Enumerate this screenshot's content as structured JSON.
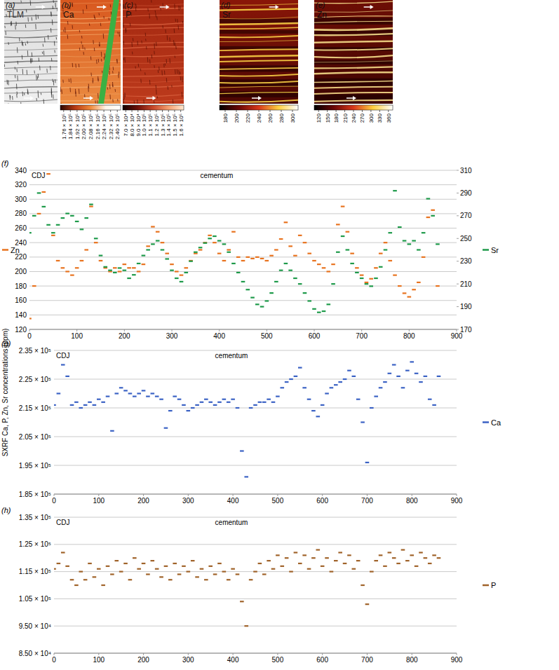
{
  "panels": [
    {
      "label": "(a)",
      "element": "TLM"
    },
    {
      "label": "(b)",
      "element": "Ca",
      "colorbar": {
        "range": [
          172000,
          244000
        ],
        "ticks": [
          {
            "value": 176000,
            "label": "1.76 × 10⁵"
          },
          {
            "value": 184000,
            "label": "1.84 × 10⁵"
          },
          {
            "value": 192000,
            "label": "1.92 × 10⁵"
          },
          {
            "value": 200000,
            "label": "2.00 × 10⁵"
          },
          {
            "value": 208000,
            "label": "2.08 × 10⁵"
          },
          {
            "value": 216000,
            "label": "2.16 × 10⁵"
          },
          {
            "value": 224000,
            "label": "2.24 × 10⁵"
          },
          {
            "value": 232000,
            "label": "2.32 × 10⁵"
          },
          {
            "value": 240000,
            "label": "2.40 × 10⁵"
          }
        ]
      }
    },
    {
      "label": "(c)",
      "element": "P",
      "colorbar": {
        "range": [
          65000,
          165000
        ],
        "ticks": [
          {
            "value": 70000,
            "label": "7.0 × 10⁴"
          },
          {
            "value": 80000,
            "label": "8.0 × 10⁴"
          },
          {
            "value": 90000,
            "label": "9.0 × 10⁴"
          },
          {
            "value": 100000,
            "label": "1.0 × 10⁵"
          },
          {
            "value": 110000,
            "label": "1.1 × 10⁵"
          },
          {
            "value": 120000,
            "label": "1.2 × 10⁵"
          },
          {
            "value": 130000,
            "label": "1.3 × 10⁵"
          },
          {
            "value": 140000,
            "label": "1.4 × 10⁵"
          },
          {
            "value": 150000,
            "label": "1.5 × 10⁵"
          },
          {
            "value": 160000,
            "label": "1.6 × 10⁵"
          }
        ]
      }
    },
    {
      "label": "(d)",
      "element": "Sr",
      "colorbar": {
        "range": [
          170,
          310
        ],
        "ticks": [
          180,
          200,
          220,
          240,
          260,
          280,
          300
        ]
      }
    },
    {
      "label": "(e)",
      "element": "Zn",
      "colorbar": {
        "range": [
          105,
          375
        ],
        "ticks": [
          120,
          150,
          180,
          210,
          240,
          270,
          300,
          330,
          360
        ]
      }
    }
  ],
  "y_axis_label": "SXRF Ca, P, Zn, Sr concentrations (ppm)",
  "chart_data": [
    {
      "type": "scatter",
      "title": "(f)",
      "annotations": [
        "CDJ",
        "cementum"
      ],
      "marker": "dash",
      "grid": true,
      "legend": "outside",
      "x": [
        0,
        10,
        20,
        30,
        40,
        50,
        60,
        70,
        80,
        90,
        100,
        110,
        120,
        130,
        140,
        150,
        160,
        170,
        180,
        190,
        200,
        210,
        220,
        230,
        240,
        250,
        260,
        270,
        280,
        290,
        300,
        310,
        320,
        330,
        340,
        350,
        360,
        370,
        380,
        390,
        400,
        410,
        420,
        430,
        440,
        450,
        460,
        470,
        480,
        490,
        500,
        510,
        520,
        530,
        540,
        550,
        560,
        570,
        580,
        590,
        600,
        610,
        620,
        630,
        640,
        650,
        660,
        670,
        680,
        690,
        700,
        710,
        720,
        730,
        740,
        750,
        760,
        770,
        780,
        790,
        800,
        810,
        820,
        830,
        840,
        850,
        860
      ],
      "xlim": [
        0,
        900
      ],
      "xticks": [
        0,
        100,
        200,
        300,
        400,
        500,
        600,
        700,
        800,
        900
      ],
      "ylim": [
        120,
        340
      ],
      "yticks": [
        120,
        140,
        160,
        180,
        200,
        220,
        240,
        260,
        280,
        300,
        320,
        340
      ],
      "y2lim": [
        170,
        310
      ],
      "y2ticks": [
        170,
        190,
        210,
        230,
        250,
        270,
        290,
        310
      ],
      "series": [
        {
          "name": "Zn",
          "color": "#e8731f",
          "values": [
            135,
            180,
            280,
            310,
            335,
            250,
            215,
            205,
            200,
            195,
            205,
            215,
            230,
            290,
            240,
            215,
            205,
            200,
            205,
            200,
            210,
            205,
            205,
            200,
            210,
            235,
            262,
            255,
            240,
            225,
            210,
            200,
            195,
            205,
            215,
            225,
            230,
            240,
            250,
            240,
            225,
            215,
            230,
            255,
            220,
            215,
            220,
            218,
            220,
            218,
            215,
            222,
            230,
            245,
            268,
            235,
            222,
            250,
            240,
            225,
            215,
            210,
            205,
            200,
            210,
            265,
            290,
            255,
            225,
            205,
            195,
            185,
            190,
            205,
            225,
            240,
            215,
            195,
            180,
            170,
            165,
            175,
            185,
            220,
            275,
            285,
            180
          ]
        },
        {
          "name": "Sr",
          "color": "#1e9a4a",
          "axis": "y2",
          "values": [
            255,
            270,
            290,
            278,
            262,
            255,
            262,
            268,
            272,
            270,
            265,
            258,
            268,
            280,
            250,
            235,
            225,
            222,
            220,
            224,
            222,
            215,
            218,
            228,
            235,
            240,
            245,
            248,
            240,
            232,
            222,
            215,
            212,
            220,
            230,
            238,
            242,
            246,
            250,
            252,
            248,
            245,
            238,
            228,
            220,
            212,
            205,
            198,
            192,
            190,
            195,
            202,
            212,
            222,
            228,
            222,
            215,
            210,
            202,
            195,
            188,
            185,
            186,
            192,
            210,
            238,
            252,
            240,
            228,
            220,
            215,
            210,
            208,
            215,
            225,
            240,
            255,
            292,
            260,
            248,
            245,
            248,
            240,
            255,
            285,
            270,
            245
          ]
        }
      ]
    },
    {
      "type": "scatter",
      "title": "(g)",
      "annotations": [
        "CDJ",
        "cementum"
      ],
      "marker": "dash",
      "grid": true,
      "legend": "outside",
      "x": [
        0,
        10,
        20,
        30,
        40,
        50,
        60,
        70,
        80,
        90,
        100,
        110,
        120,
        130,
        140,
        150,
        160,
        170,
        180,
        190,
        200,
        210,
        220,
        230,
        240,
        250,
        260,
        270,
        280,
        290,
        300,
        310,
        320,
        330,
        340,
        350,
        360,
        370,
        380,
        390,
        400,
        410,
        420,
        430,
        440,
        450,
        460,
        470,
        480,
        490,
        500,
        510,
        520,
        530,
        540,
        550,
        560,
        570,
        580,
        590,
        600,
        610,
        620,
        630,
        640,
        650,
        660,
        670,
        680,
        690,
        700,
        710,
        720,
        730,
        740,
        750,
        760,
        770,
        780,
        790,
        800,
        810,
        820,
        830,
        840,
        850,
        860
      ],
      "xlim": [
        0,
        900
      ],
      "xticks": [
        0,
        100,
        200,
        300,
        400,
        500,
        600,
        700,
        800,
        900
      ],
      "ylim": [
        185000,
        235000
      ],
      "yticks": [
        {
          "value": 185000,
          "label": "1.85 × 10⁵"
        },
        {
          "value": 195000,
          "label": "1.95 × 10⁵"
        },
        {
          "value": 205000,
          "label": "2.05 × 10⁵"
        },
        {
          "value": 215000,
          "label": "2.15 × 10⁵"
        },
        {
          "value": 225000,
          "label": "2.25 × 10⁵"
        },
        {
          "value": 235000,
          "label": "2.35 × 10⁵"
        }
      ],
      "series": [
        {
          "name": "Ca",
          "color": "#3b62c4",
          "values": [
            216000,
            220000,
            230000,
            226000,
            216000,
            217000,
            215000,
            216000,
            217000,
            216000,
            218000,
            217000,
            219000,
            207000,
            220000,
            222000,
            221000,
            220000,
            219000,
            220000,
            221000,
            219000,
            220000,
            219000,
            218000,
            208000,
            214000,
            219000,
            218000,
            216000,
            214000,
            215000,
            216000,
            217000,
            218000,
            217000,
            216000,
            217000,
            218000,
            217000,
            218000,
            215000,
            200000,
            191000,
            215000,
            216000,
            217000,
            217000,
            218000,
            217000,
            219000,
            222000,
            224000,
            225000,
            226000,
            229000,
            222000,
            218000,
            214000,
            212000,
            216000,
            220000,
            222000,
            223000,
            224000,
            225000,
            228000,
            226000,
            218000,
            210000,
            196000,
            215000,
            219000,
            222000,
            224000,
            227000,
            230000,
            226000,
            222000,
            228000,
            231000,
            227000,
            224000,
            226000,
            218000,
            216000,
            226000
          ]
        }
      ]
    },
    {
      "type": "scatter",
      "title": "(h)",
      "annotations": [
        "CDJ",
        "cementum"
      ],
      "marker": "dash",
      "grid": true,
      "legend": "outside",
      "x": [
        0,
        10,
        20,
        30,
        40,
        50,
        60,
        70,
        80,
        90,
        100,
        110,
        120,
        130,
        140,
        150,
        160,
        170,
        180,
        190,
        200,
        210,
        220,
        230,
        240,
        250,
        260,
        270,
        280,
        290,
        300,
        310,
        320,
        330,
        340,
        350,
        360,
        370,
        380,
        390,
        400,
        410,
        420,
        430,
        440,
        450,
        460,
        470,
        480,
        490,
        500,
        510,
        520,
        530,
        540,
        550,
        560,
        570,
        580,
        590,
        600,
        610,
        620,
        630,
        640,
        650,
        660,
        670,
        680,
        690,
        700,
        710,
        720,
        730,
        740,
        750,
        760,
        770,
        780,
        790,
        800,
        810,
        820,
        830,
        840,
        850,
        860
      ],
      "xlim": [
        0,
        900
      ],
      "xticks": [
        0,
        100,
        200,
        300,
        400,
        500,
        600,
        700,
        800,
        900
      ],
      "ylim": [
        85000,
        135000
      ],
      "yticks": [
        {
          "value": 85000,
          "label": "8.50 × 10⁴"
        },
        {
          "value": 95000,
          "label": "9.50 × 10⁴"
        },
        {
          "value": 105000,
          "label": "1.05 × 10⁵"
        },
        {
          "value": 115000,
          "label": "1.15 × 10⁵"
        },
        {
          "value": 125000,
          "label": "1.25 × 10⁵"
        },
        {
          "value": 135000,
          "label": "1.35 × 10⁵"
        }
      ],
      "series": [
        {
          "name": "P",
          "color": "#a0632a",
          "values": [
            116000,
            118000,
            122000,
            117000,
            112000,
            110000,
            115000,
            112000,
            118000,
            113000,
            116000,
            110000,
            117000,
            114000,
            119000,
            115000,
            118000,
            112000,
            120000,
            116000,
            118000,
            114000,
            119000,
            116000,
            113000,
            117000,
            112000,
            118000,
            114000,
            117000,
            115000,
            119000,
            113000,
            116000,
            112000,
            117000,
            114000,
            118000,
            115000,
            112000,
            116000,
            114000,
            104000,
            95000,
            112000,
            115000,
            118000,
            114000,
            119000,
            116000,
            121000,
            117000,
            120000,
            115000,
            122000,
            118000,
            121000,
            116000,
            120000,
            123000,
            117000,
            120000,
            115000,
            119000,
            122000,
            118000,
            121000,
            116000,
            119000,
            110000,
            103000,
            115000,
            119000,
            121000,
            117000,
            122000,
            120000,
            118000,
            123000,
            119000,
            121000,
            117000,
            122000,
            120000,
            118000,
            121000,
            120000
          ]
        }
      ]
    }
  ]
}
